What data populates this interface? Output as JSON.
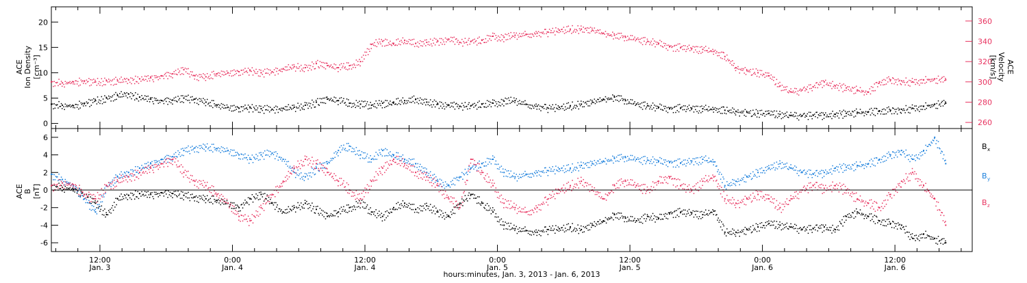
{
  "colors": {
    "axis": "#000000",
    "bx": "#000000",
    "by": "#1a7fdc",
    "bz": "#e8325f",
    "density": "#000000",
    "velocity": "#e8325f"
  },
  "chart_data": [
    {
      "type": "scatter",
      "panel": "top",
      "ylabel_left": [
        "ACE",
        "Ion Density",
        "[cm⁻³]"
      ],
      "ylabel_right": [
        "ACE",
        "Velocity",
        "[km/s]"
      ],
      "ylim_left": [
        -1,
        23
      ],
      "yticks_left": [
        "0",
        "5",
        "10",
        "15",
        "20"
      ],
      "yticks_left_values": [
        0,
        5,
        10,
        15,
        20
      ],
      "ylim_right": [
        254,
        374
      ],
      "yticks_right": [
        "260",
        "280",
        "300",
        "320",
        "340",
        "360"
      ],
      "yticks_right_values": [
        260,
        280,
        300,
        320,
        340,
        360
      ],
      "series": [
        {
          "axis": "left",
          "color_key": "density",
          "x": [
            0,
            1,
            2,
            3,
            4,
            5,
            6,
            7,
            8,
            9,
            10,
            11,
            12,
            13,
            14,
            15,
            16,
            17,
            18,
            19,
            20,
            21,
            22,
            23,
            24,
            25,
            26,
            27,
            28,
            29,
            30,
            31,
            32,
            33,
            34,
            35,
            36,
            37,
            38,
            39,
            40,
            41,
            42,
            43,
            44,
            45,
            46,
            47,
            48,
            49,
            50,
            51,
            52,
            53,
            54,
            55,
            56,
            57,
            58,
            59,
            60,
            61,
            62,
            63,
            64,
            65,
            66,
            67,
            68,
            69,
            70,
            71,
            72,
            73,
            74,
            75,
            76,
            77,
            78,
            79,
            80,
            81
          ],
          "values": [
            3.8,
            3.6,
            3.5,
            4.0,
            4.5,
            5.0,
            5.5,
            5.8,
            5.2,
            4.8,
            4.5,
            4.6,
            5.0,
            4.8,
            4.2,
            3.6,
            3.2,
            3.0,
            3.1,
            2.9,
            2.8,
            3.0,
            3.2,
            3.6,
            4.2,
            4.8,
            4.5,
            4.0,
            3.8,
            3.6,
            4.0,
            4.2,
            4.5,
            4.8,
            4.2,
            3.8,
            3.6,
            3.4,
            3.5,
            3.8,
            4.0,
            4.4,
            4.5,
            3.8,
            3.4,
            3.0,
            3.2,
            3.5,
            3.8,
            4.2,
            4.8,
            5.2,
            4.5,
            3.8,
            3.5,
            3.2,
            3.0,
            3.1,
            3.0,
            2.9,
            2.8,
            2.6,
            2.4,
            2.2,
            2.0,
            2.0,
            1.8,
            1.6,
            1.5,
            1.6,
            1.7,
            1.8,
            2.0,
            2.2,
            2.3,
            2.5,
            2.6,
            2.8,
            3.0,
            3.4,
            3.8,
            4.0
          ]
        },
        {
          "axis": "right",
          "color_key": "velocity",
          "x": [
            0,
            1,
            2,
            3,
            4,
            5,
            6,
            7,
            8,
            9,
            10,
            11,
            12,
            13,
            14,
            15,
            16,
            17,
            18,
            19,
            20,
            21,
            22,
            23,
            24,
            25,
            26,
            27,
            28,
            29,
            30,
            31,
            32,
            33,
            34,
            35,
            36,
            37,
            38,
            39,
            40,
            41,
            42,
            43,
            44,
            45,
            46,
            47,
            48,
            49,
            50,
            51,
            52,
            53,
            54,
            55,
            56,
            57,
            58,
            59,
            60,
            61,
            62,
            63,
            64,
            65,
            66,
            67,
            68,
            69,
            70,
            71,
            72,
            73,
            74,
            75,
            76,
            77,
            78,
            79,
            80,
            81
          ],
          "values": [
            300,
            299,
            300,
            301,
            300,
            301,
            301,
            302,
            303,
            304,
            306,
            308,
            312,
            306,
            305,
            308,
            309,
            310,
            311,
            309,
            310,
            313,
            315,
            314,
            318,
            316,
            314,
            316,
            320,
            337,
            340,
            338,
            341,
            338,
            339,
            340,
            342,
            339,
            340,
            341,
            345,
            344,
            346,
            347,
            348,
            349,
            351,
            352,
            352,
            351,
            348,
            346,
            344,
            342,
            340,
            338,
            335,
            334,
            333,
            332,
            330,
            325,
            314,
            311,
            309,
            306,
            296,
            290,
            292,
            295,
            300,
            296,
            294,
            292,
            290,
            300,
            302,
            301,
            300,
            302,
            303,
            302
          ]
        }
      ]
    },
    {
      "type": "scatter",
      "panel": "bottom",
      "ylabel_left": [
        "ACE",
        "B",
        "[nT]"
      ],
      "ylim": [
        -7,
        7
      ],
      "yticks": [
        "-6",
        "-4",
        "-2",
        "0",
        "2",
        "4",
        "6"
      ],
      "yticks_values": [
        -6,
        -4,
        -2,
        0,
        2,
        4,
        6
      ],
      "legend": [
        {
          "label": "B",
          "sub": "x",
          "color_key": "bx"
        },
        {
          "label": "B",
          "sub": "y",
          "color_key": "by"
        },
        {
          "label": "B",
          "sub": "z",
          "color_key": "bz"
        }
      ],
      "series": [
        {
          "name": "Bx",
          "color_key": "bx",
          "x": [
            0,
            1,
            2,
            3,
            4,
            5,
            6,
            7,
            8,
            9,
            10,
            11,
            12,
            13,
            14,
            15,
            16,
            17,
            18,
            19,
            20,
            21,
            22,
            23,
            24,
            25,
            26,
            27,
            28,
            29,
            30,
            31,
            32,
            33,
            34,
            35,
            36,
            37,
            38,
            39,
            40,
            41,
            42,
            43,
            44,
            45,
            46,
            47,
            48,
            49,
            50,
            51,
            52,
            53,
            54,
            55,
            56,
            57,
            58,
            59,
            60,
            61,
            62,
            63,
            64,
            65,
            66,
            67,
            68,
            69,
            70,
            71,
            72,
            73,
            74,
            75,
            76,
            77,
            78,
            79,
            80,
            81
          ],
          "values": [
            0.5,
            0.3,
            0.1,
            -0.5,
            -1.5,
            -2.8,
            -1.0,
            -0.6,
            -0.4,
            -0.5,
            -0.3,
            -0.4,
            -0.6,
            -0.8,
            -1.0,
            -1.2,
            -1.5,
            -2.0,
            -1.0,
            -0.5,
            -1.5,
            -2.5,
            -2.0,
            -1.5,
            -2.2,
            -3.0,
            -2.5,
            -2.0,
            -1.5,
            -2.5,
            -3.0,
            -2.0,
            -1.5,
            -2.2,
            -1.8,
            -2.5,
            -3.0,
            -1.5,
            -0.5,
            -1.5,
            -2.5,
            -4.0,
            -4.4,
            -4.6,
            -4.8,
            -4.5,
            -4.4,
            -4.2,
            -4.5,
            -4.0,
            -3.5,
            -2.8,
            -3.2,
            -3.5,
            -3.0,
            -3.2,
            -2.6,
            -2.5,
            -2.6,
            -2.8,
            -2.4,
            -4.8,
            -4.8,
            -4.5,
            -4.2,
            -3.8,
            -4.0,
            -4.2,
            -4.5,
            -4.4,
            -4.2,
            -4.5,
            -3.0,
            -2.5,
            -3.0,
            -3.5,
            -3.8,
            -4.0,
            -5.5,
            -5.0,
            -5.5,
            -6.0
          ]
        },
        {
          "name": "By",
          "color_key": "by",
          "x": [
            0,
            1,
            2,
            3,
            4,
            5,
            6,
            7,
            8,
            9,
            10,
            11,
            12,
            13,
            14,
            15,
            16,
            17,
            18,
            19,
            20,
            21,
            22,
            23,
            24,
            25,
            26,
            27,
            28,
            29,
            30,
            31,
            32,
            33,
            34,
            35,
            36,
            37,
            38,
            39,
            40,
            41,
            42,
            43,
            44,
            45,
            46,
            47,
            48,
            49,
            50,
            51,
            52,
            53,
            54,
            55,
            56,
            57,
            58,
            59,
            60,
            61,
            62,
            63,
            64,
            65,
            66,
            67,
            68,
            69,
            70,
            71,
            72,
            73,
            74,
            75,
            76,
            77,
            78,
            79,
            80,
            81
          ],
          "values": [
            1.8,
            1.2,
            0.5,
            -1.0,
            -2.5,
            0.5,
            1.5,
            2.0,
            2.5,
            3.0,
            3.5,
            3.8,
            4.5,
            4.8,
            4.9,
            4.7,
            4.5,
            4.0,
            3.5,
            4.0,
            4.2,
            3.5,
            2.0,
            1.5,
            2.5,
            3.0,
            4.5,
            5.0,
            4.0,
            3.5,
            4.5,
            4.0,
            3.5,
            3.0,
            2.0,
            1.0,
            0.5,
            1.5,
            2.5,
            3.0,
            3.5,
            2.0,
            1.5,
            1.8,
            2.0,
            2.2,
            2.4,
            2.5,
            2.8,
            3.0,
            3.3,
            3.6,
            3.7,
            3.5,
            3.4,
            3.3,
            3.2,
            3.1,
            3.3,
            3.5,
            3.2,
            0.5,
            1.0,
            1.5,
            2.0,
            2.5,
            3.0,
            2.5,
            2.0,
            1.8,
            2.0,
            2.5,
            2.6,
            2.8,
            3.0,
            3.5,
            4.0,
            4.5,
            3.5,
            4.5,
            6.0,
            3.0
          ]
        },
        {
          "name": "Bz",
          "color_key": "bz",
          "x": [
            0,
            1,
            2,
            3,
            4,
            5,
            6,
            7,
            8,
            9,
            10,
            11,
            12,
            13,
            14,
            15,
            16,
            17,
            18,
            19,
            20,
            21,
            22,
            23,
            24,
            25,
            26,
            27,
            28,
            29,
            30,
            31,
            32,
            33,
            34,
            35,
            36,
            37,
            38,
            39,
            40,
            41,
            42,
            43,
            44,
            45,
            46,
            47,
            48,
            49,
            50,
            51,
            52,
            53,
            54,
            55,
            56,
            57,
            58,
            59,
            60,
            61,
            62,
            63,
            64,
            65,
            66,
            67,
            68,
            69,
            70,
            71,
            72,
            73,
            74,
            75,
            76,
            77,
            78,
            79,
            80,
            81
          ],
          "values": [
            0.5,
            0.8,
            0.6,
            -0.5,
            -1.0,
            0.5,
            1.0,
            1.5,
            2.0,
            2.5,
            3.0,
            3.5,
            2.0,
            1.0,
            0.5,
            -0.5,
            -1.5,
            -3.0,
            -3.5,
            -2.0,
            -0.5,
            1.0,
            2.5,
            3.5,
            3.0,
            2.0,
            1.0,
            0.0,
            -1.0,
            1.0,
            2.5,
            3.5,
            3.0,
            2.0,
            1.5,
            0.5,
            -1.0,
            -2.0,
            3.5,
            2.0,
            0.5,
            -1.5,
            -2.0,
            -2.5,
            -2.0,
            -1.0,
            0.0,
            0.5,
            1.0,
            0.0,
            -1.0,
            0.5,
            1.0,
            0.5,
            0.0,
            1.0,
            1.5,
            0.5,
            0.0,
            1.0,
            1.5,
            -1.0,
            -1.5,
            -1.0,
            -0.5,
            -1.0,
            -2.0,
            -1.0,
            0.0,
            0.5,
            0.2,
            0.5,
            0.0,
            -1.0,
            -1.5,
            -2.0,
            -0.5,
            1.0,
            2.0,
            0.5,
            -1.0,
            -4.0
          ]
        }
      ]
    }
  ],
  "x_axis": {
    "tick_labels": [
      {
        "time": "12:00",
        "day": "Jan. 3",
        "hour": 12
      },
      {
        "time": "0:00",
        "day": "Jan. 4",
        "hour": 24
      },
      {
        "time": "12:00",
        "day": "Jan. 4",
        "hour": 36
      },
      {
        "time": "0:00",
        "day": "Jan. 5",
        "hour": 48
      },
      {
        "time": "12:00",
        "day": "Jan. 5",
        "hour": 60
      },
      {
        "time": "0:00",
        "day": "Jan. 6",
        "hour": 72
      },
      {
        "time": "12:00",
        "day": "Jan. 6",
        "hour": 84
      }
    ],
    "xlim_hours": [
      7.6,
      91
    ],
    "data_start_hour": 7.6,
    "data_step_hours": 0.2,
    "title": "hours:minutes, Jan.  3, 2013 - Jan.  6, 2013"
  }
}
